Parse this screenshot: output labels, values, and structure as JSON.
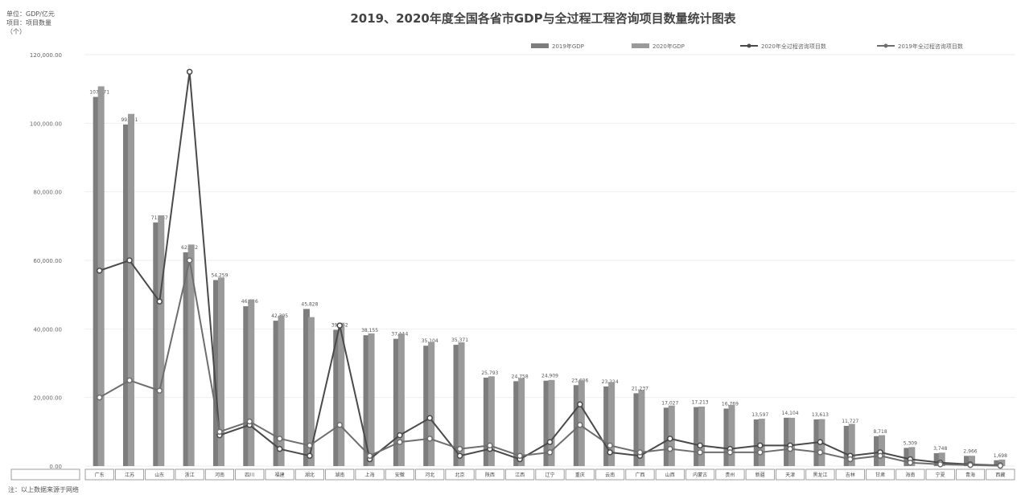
{
  "chart_data": {
    "type": "bar",
    "title": "2019、2020年度全国各省市GDP与全过程工程咨询项目数量统计图表",
    "unit_lines": [
      "单位：GDP/亿元",
      "项目：项目数量"
    ],
    "ylabel": "（个）",
    "ylim": [
      0,
      120000
    ],
    "y_ticks": [
      0,
      20000,
      40000,
      60000,
      80000,
      100000,
      120000
    ],
    "legend_position": "top-right",
    "categories": [
      "广东",
      "江苏",
      "山东",
      "浙江",
      "河南",
      "四川",
      "福建",
      "湖北",
      "湖南",
      "上海",
      "安徽",
      "河北",
      "北京",
      "陕西",
      "江西",
      "辽宁",
      "重庆",
      "云南",
      "广西",
      "山西",
      "内蒙古",
      "贵州",
      "新疆",
      "天津",
      "黑龙江",
      "吉林",
      "甘肃",
      "海南",
      "宁夏",
      "青海",
      "西藏"
    ],
    "series": [
      {
        "name": "2019年GDP",
        "kind": "bar",
        "color": "#7d7d7d",
        "values": [
          107671,
          99631,
          71067,
          62352,
          54259,
          46616,
          42395,
          45828,
          39752,
          38155,
          37114,
          35104,
          35371,
          25793,
          24758,
          24909,
          23606,
          23224,
          21237,
          17027,
          17213,
          16769,
          13597,
          14104,
          13613,
          11727,
          8718,
          5309,
          3748,
          2966,
          1698
        ]
      },
      {
        "name": "2020年GDP",
        "kind": "bar",
        "color": "#9a9a9a",
        "values": [
          110761,
          102719,
          73129,
          64613,
          54997,
          48599,
          43904,
          43443,
          41781,
          38700,
          38681,
          36207,
          36103,
          26182,
          25692,
          25115,
          25003,
          24522,
          22157,
          17652,
          17360,
          17827,
          13798,
          14084,
          13699,
          12311,
          9017,
          5532,
          3921,
          3006,
          1903
        ]
      },
      {
        "name": "2020年全过程咨询项目数",
        "kind": "line",
        "color": "#4a4a4a",
        "values": [
          57000,
          60000,
          48000,
          115000,
          9000,
          12000,
          5000,
          3000,
          41000,
          2000,
          9000,
          14000,
          3000,
          5000,
          2000,
          7000,
          18000,
          4000,
          3000,
          8000,
          6000,
          5000,
          6000,
          6000,
          7000,
          3000,
          4000,
          2000,
          1000,
          500,
          200
        ]
      },
      {
        "name": "2019年全过程咨询项目数",
        "kind": "line",
        "color": "#6e6e6e",
        "values": [
          20000,
          25000,
          22000,
          60000,
          10000,
          13000,
          8000,
          6000,
          12000,
          3000,
          7000,
          8000,
          5000,
          6000,
          3000,
          4000,
          12000,
          6000,
          4000,
          5000,
          4000,
          4000,
          4000,
          5000,
          4000,
          2000,
          3000,
          1000,
          500,
          300,
          100
        ]
      }
    ],
    "footnote": "注：以上数据来源于网络"
  }
}
